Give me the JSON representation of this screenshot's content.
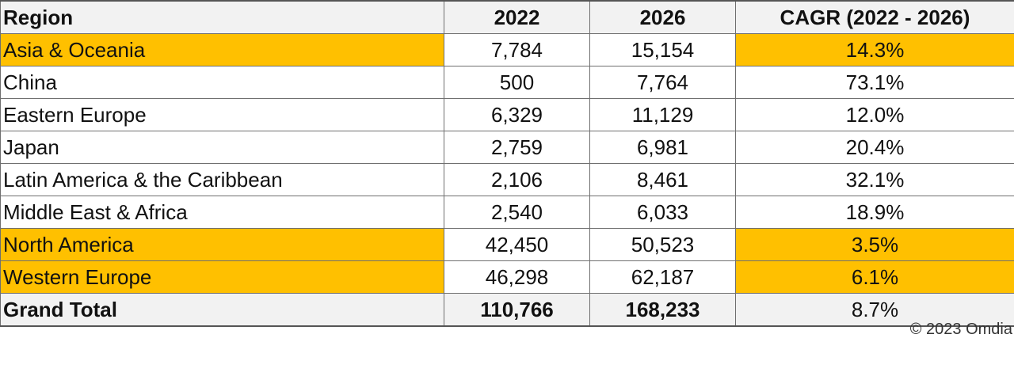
{
  "chart_data": {
    "type": "table",
    "columns": [
      "Region",
      "2022",
      "2026",
      "CAGR (2022 - 2026)"
    ],
    "rows": [
      {
        "region": "Asia & Oceania",
        "y2022": "7,784",
        "y2026": "15,154",
        "cagr": "14.3%",
        "highlight": true
      },
      {
        "region": "China",
        "y2022": "500",
        "y2026": "7,764",
        "cagr": "73.1%",
        "highlight": false
      },
      {
        "region": "Eastern Europe",
        "y2022": "6,329",
        "y2026": "11,129",
        "cagr": "12.0%",
        "highlight": false
      },
      {
        "region": "Japan",
        "y2022": "2,759",
        "y2026": "6,981",
        "cagr": "20.4%",
        "highlight": false
      },
      {
        "region": "Latin America & the Caribbean",
        "y2022": "2,106",
        "y2026": "8,461",
        "cagr": "32.1%",
        "highlight": false
      },
      {
        "region": "Middle East & Africa",
        "y2022": "2,540",
        "y2026": "6,033",
        "cagr": "18.9%",
        "highlight": false
      },
      {
        "region": "North America",
        "y2022": "42,450",
        "y2026": "50,523",
        "cagr": "3.5%",
        "highlight": true
      },
      {
        "region": "Western Europe",
        "y2022": "46,298",
        "y2026": "62,187",
        "cagr": "6.1%",
        "highlight": true
      }
    ],
    "total": {
      "region": "Grand Total",
      "y2022": "110,766",
      "y2026": "168,233",
      "cagr": "8.7%"
    }
  },
  "colors": {
    "highlight": "#ffc000",
    "header_bg": "#f2f2f2",
    "border": "#6f6f6f"
  },
  "copyright": "© 2023 Omdia"
}
